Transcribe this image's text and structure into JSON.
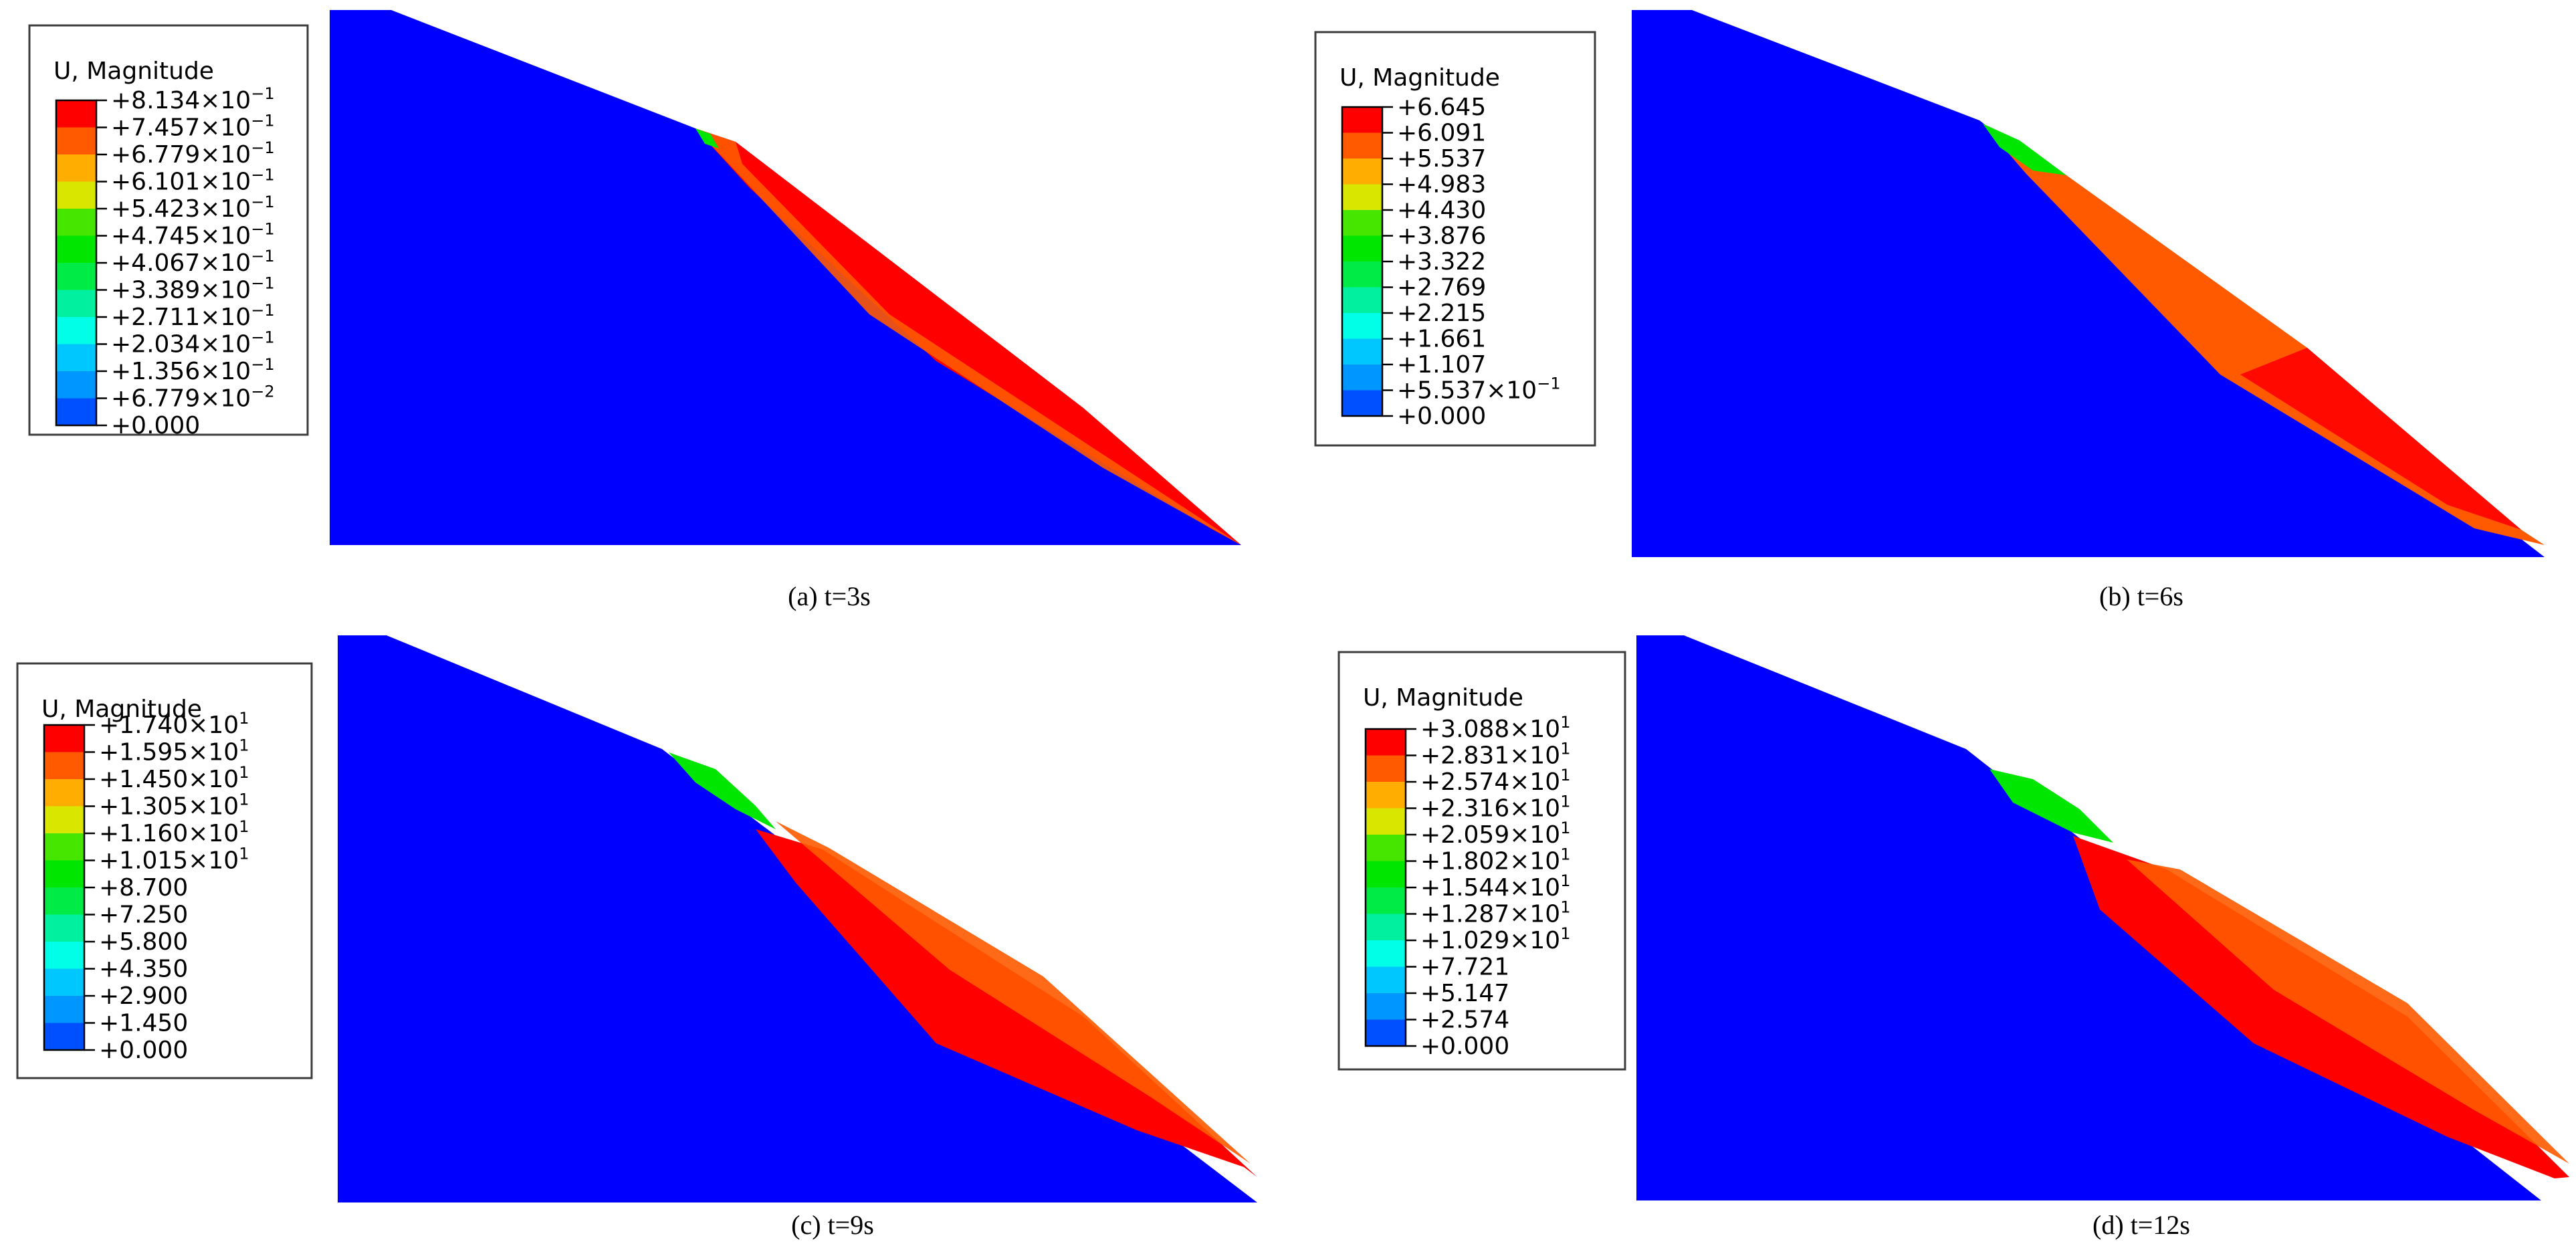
{
  "panels": [
    {
      "caption": "(a) t=3s",
      "legend_title": "U, Magnitude",
      "legend_values": [
        [
          "+8.134",
          "-1"
        ],
        [
          "+7.457",
          "-1"
        ],
        [
          "+6.779",
          "-1"
        ],
        [
          "+6.101",
          "-1"
        ],
        [
          "+5.423",
          "-1"
        ],
        [
          "+4.745",
          "-1"
        ],
        [
          "+4.067",
          "-1"
        ],
        [
          "+3.389",
          "-1"
        ],
        [
          "+2.711",
          "-1"
        ],
        [
          "+2.034",
          "-1"
        ],
        [
          "+1.356",
          "-1"
        ],
        [
          "+6.779",
          "-2"
        ],
        [
          "+0.000",
          ""
        ]
      ],
      "slide_color": "red"
    },
    {
      "caption": "(b) t=6s",
      "legend_title": "U, Magnitude",
      "legend_values": [
        [
          "+6.645",
          ""
        ],
        [
          "+6.091",
          ""
        ],
        [
          "+5.537",
          ""
        ],
        [
          "+4.983",
          ""
        ],
        [
          "+4.430",
          ""
        ],
        [
          "+3.876",
          ""
        ],
        [
          "+3.322",
          ""
        ],
        [
          "+2.769",
          ""
        ],
        [
          "+2.215",
          ""
        ],
        [
          "+1.661",
          ""
        ],
        [
          "+1.107",
          ""
        ],
        [
          "+5.537",
          "-1"
        ],
        [
          "+0.000",
          ""
        ]
      ],
      "slide_color": "orange"
    },
    {
      "caption": "(c) t=9s",
      "legend_title": "U, Magnitude",
      "legend_values": [
        [
          "+1.740",
          "1"
        ],
        [
          "+1.595",
          "1"
        ],
        [
          "+1.450",
          "1"
        ],
        [
          "+1.305",
          "1"
        ],
        [
          "+1.160",
          "1"
        ],
        [
          "+1.015",
          "1"
        ],
        [
          "+8.700",
          ""
        ],
        [
          "+7.250",
          ""
        ],
        [
          "+5.800",
          ""
        ],
        [
          "+4.350",
          ""
        ],
        [
          "+2.900",
          ""
        ],
        [
          "+1.450",
          ""
        ],
        [
          "+0.000",
          ""
        ]
      ],
      "slide_color": "red"
    },
    {
      "caption": "(d) t=12s",
      "legend_title": "U, Magnitude",
      "legend_values": [
        [
          "+3.088",
          "1"
        ],
        [
          "+2.831",
          "1"
        ],
        [
          "+2.574",
          "1"
        ],
        [
          "+2.316",
          "1"
        ],
        [
          "+2.059",
          "1"
        ],
        [
          "+1.802",
          "1"
        ],
        [
          "+1.544",
          "1"
        ],
        [
          "+1.287",
          "1"
        ],
        [
          "+1.029",
          "1"
        ],
        [
          "+7.721",
          ""
        ],
        [
          "+5.147",
          ""
        ],
        [
          "+2.574",
          ""
        ],
        [
          "+0.000",
          ""
        ]
      ],
      "slide_color": "red"
    }
  ],
  "colormap": [
    "#ff0000",
    "#ff5a00",
    "#ffad00",
    "#d8e600",
    "#46e600",
    "#00e600",
    "#00eb46",
    "#00f0a0",
    "#00ffe6",
    "#00c8ff",
    "#0096ff",
    "#0050ff",
    "#0000ff"
  ],
  "mesh_color": "#0000ff"
}
